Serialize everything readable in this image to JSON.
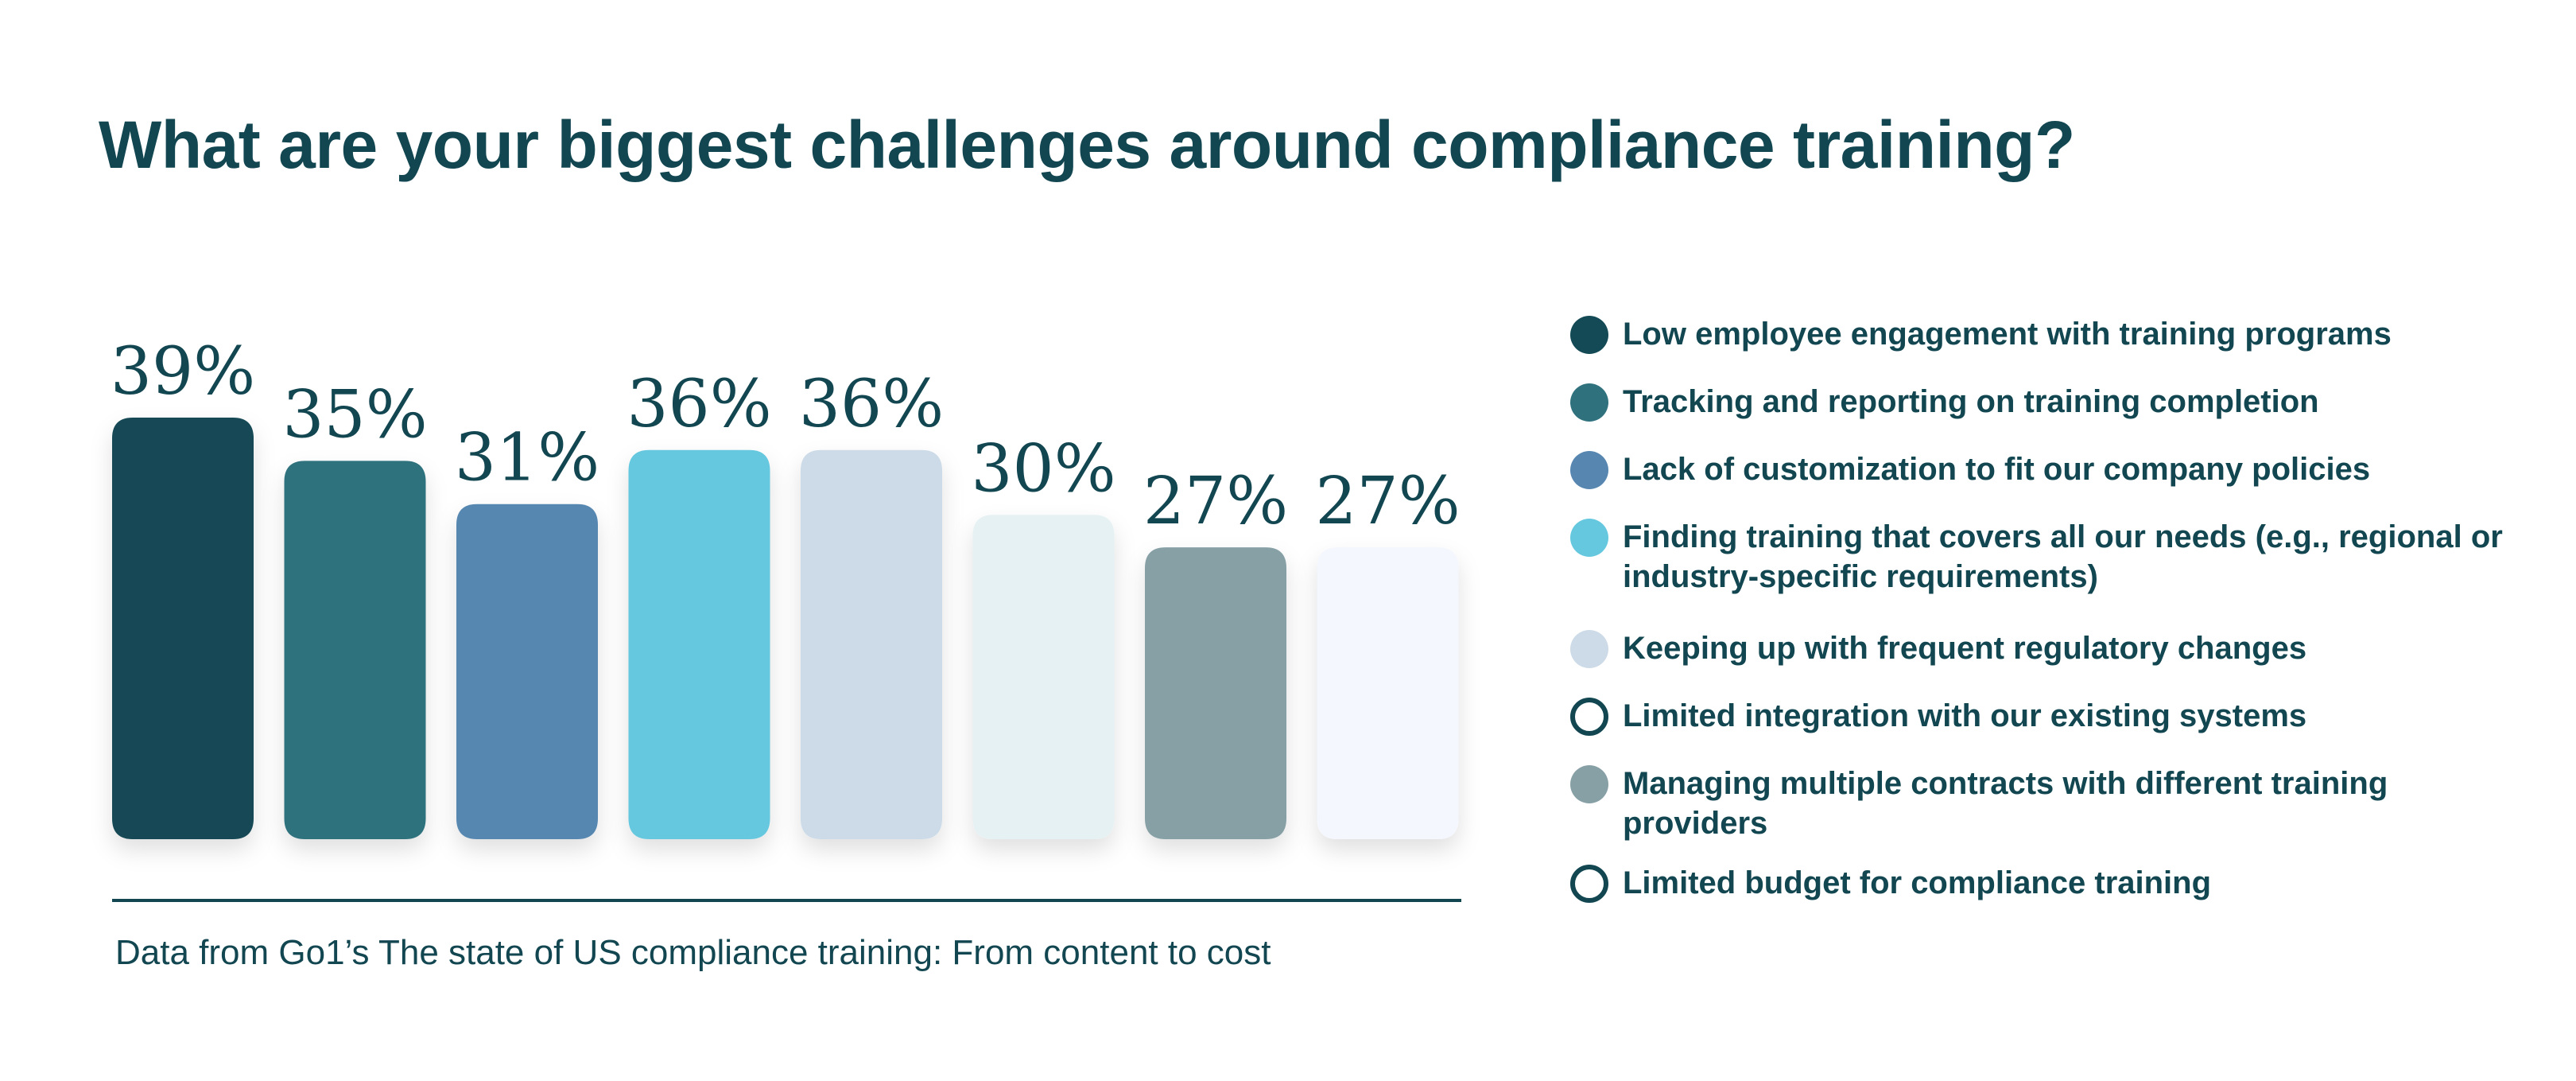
{
  "title": "What are your biggest challenges around compliance training?",
  "source": "Data from Go1’s The state of US compliance training: From content to cost",
  "colors": {
    "text": "#124651",
    "baseline": "#124651"
  },
  "chart_data": {
    "type": "bar",
    "title": "What are your biggest challenges around compliance training?",
    "unit": "%",
    "ylim": [
      0,
      39
    ],
    "grid": false,
    "legend_position": "right",
    "categories": [
      "Low employee engagement with training programs",
      "Tracking and reporting on training completion",
      "Lack of customization to fit our company policies",
      "Finding training that covers all our needs (e.g., regional or industry-specific requirements)",
      "Keeping up with frequent regulatory changes",
      "Limited integration with our existing systems",
      "Managing multiple contracts with different training providers",
      "Limited budget for compliance training"
    ],
    "values": [
      39,
      35,
      31,
      36,
      36,
      30,
      27,
      27
    ],
    "labels": [
      "39%",
      "35%",
      "31%",
      "36%",
      "36%",
      "30%",
      "27%",
      "27%"
    ],
    "colors": [
      "#134a55",
      "#2f727d",
      "#5787b1",
      "#65c8df",
      "#ccdbe7",
      "#e6f1f3",
      "#87a0a6",
      "#f4f7fe"
    ],
    "legend": [
      {
        "label": "Low employee engagement with training programs",
        "color": "#134a55",
        "style": "filled"
      },
      {
        "label": "Tracking and reporting on training completion",
        "color": "#2f727d",
        "style": "filled"
      },
      {
        "label": "Lack of customization to fit our company policies",
        "color": "#5787b1",
        "style": "filled"
      },
      {
        "label": "Finding training that covers all our needs (e.g., regional or industry-specific requirements)",
        "color": "#65c8df",
        "style": "filled"
      },
      {
        "label": "Keeping up with frequent regulatory changes",
        "color": "#ccdbe7",
        "style": "filled"
      },
      {
        "label": "Limited integration with our existing systems",
        "color": "#124651",
        "style": "outline"
      },
      {
        "label": "Managing multiple contracts with different training providers",
        "color": "#87a0a6",
        "style": "filled"
      },
      {
        "label": "Limited budget for compliance training",
        "color": "#124651",
        "style": "outline"
      }
    ]
  }
}
